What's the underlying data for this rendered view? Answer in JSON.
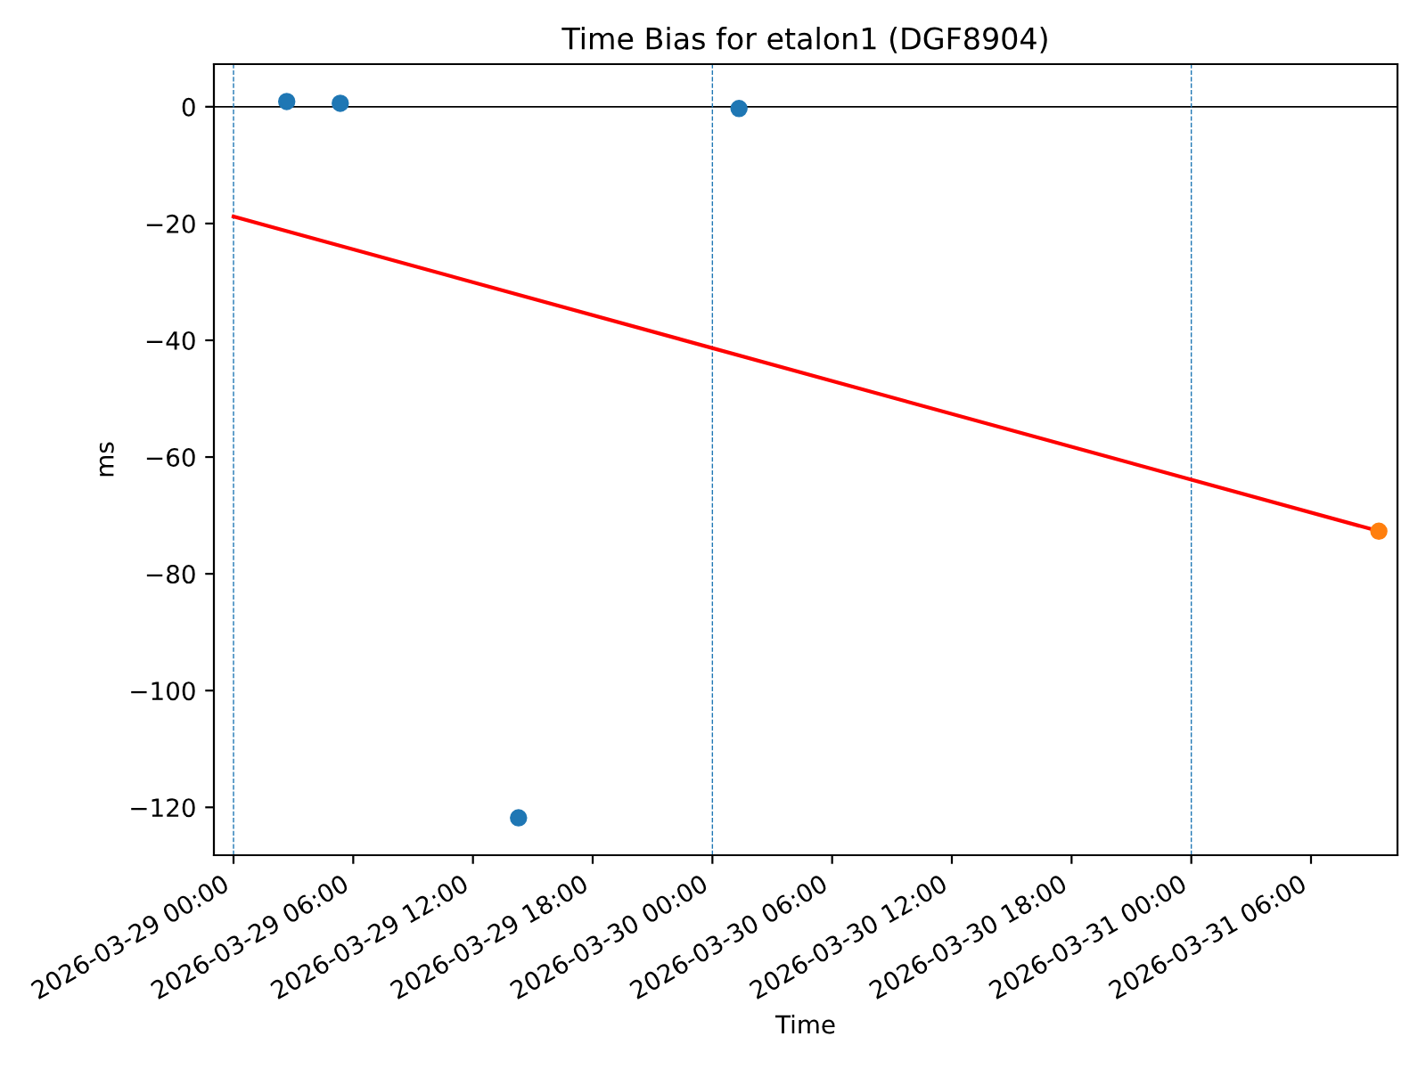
{
  "chart_data": {
    "type": "scatter",
    "title": "Time Bias for etalon1 (DGF8904)",
    "xlabel": "Time",
    "ylabel": "ms",
    "series": [
      {
        "type": "line",
        "color": "#ff0000",
        "x": [
          "2026-03-29T00:00",
          "2026-03-31T09:24"
        ],
        "values": [
          -18.8,
          -72.7
        ],
        "marker": "none"
      },
      {
        "color": "#1f77b4",
        "x": [
          "2026-03-29T02:40",
          "2026-03-29T05:21",
          "2026-03-29T14:17",
          "2026-03-30T01:20"
        ],
        "values": [
          0.9,
          0.6,
          -121.8,
          -0.3
        ]
      },
      {
        "color": "#ff7f0e",
        "x": [
          "2026-03-31T09:24"
        ],
        "values": [
          -72.7
        ]
      }
    ],
    "xlim": [
      "2026-03-28T23:01",
      "2026-03-31T10:20"
    ],
    "ylim": [
      -128.2,
      7.3
    ],
    "xticks": [
      {
        "value": "2026-03-29T00:00",
        "label": "2026-03-29 00:00"
      },
      {
        "value": "2026-03-29T06:00",
        "label": "2026-03-29 06:00"
      },
      {
        "value": "2026-03-29T12:00",
        "label": "2026-03-29 12:00"
      },
      {
        "value": "2026-03-29T18:00",
        "label": "2026-03-29 18:00"
      },
      {
        "value": "2026-03-30T00:00",
        "label": "2026-03-30 00:00"
      },
      {
        "value": "2026-03-30T06:00",
        "label": "2026-03-30 06:00"
      },
      {
        "value": "2026-03-30T12:00",
        "label": "2026-03-30 12:00"
      },
      {
        "value": "2026-03-30T18:00",
        "label": "2026-03-30 18:00"
      },
      {
        "value": "2026-03-31T00:00",
        "label": "2026-03-31 00:00"
      },
      {
        "value": "2026-03-31T06:00",
        "label": "2026-03-31 06:00"
      }
    ],
    "yticks": [
      0,
      -20,
      -40,
      -60,
      -80,
      -100,
      -120
    ],
    "ref_lines": [
      {
        "axis": "y",
        "value": 0,
        "color": "#000000",
        "line_style": "solid"
      },
      {
        "axis": "x",
        "value": "2026-03-29T00:00",
        "color": "#1f77b4",
        "line_style": "dashed"
      },
      {
        "axis": "x",
        "value": "2026-03-30T00:00",
        "color": "#1f77b4",
        "line_style": "dashed"
      },
      {
        "axis": "x",
        "value": "2026-03-31T00:00",
        "color": "#1f77b4",
        "line_style": "dashed"
      }
    ],
    "grid": false,
    "legend": false,
    "marker": "circle"
  }
}
